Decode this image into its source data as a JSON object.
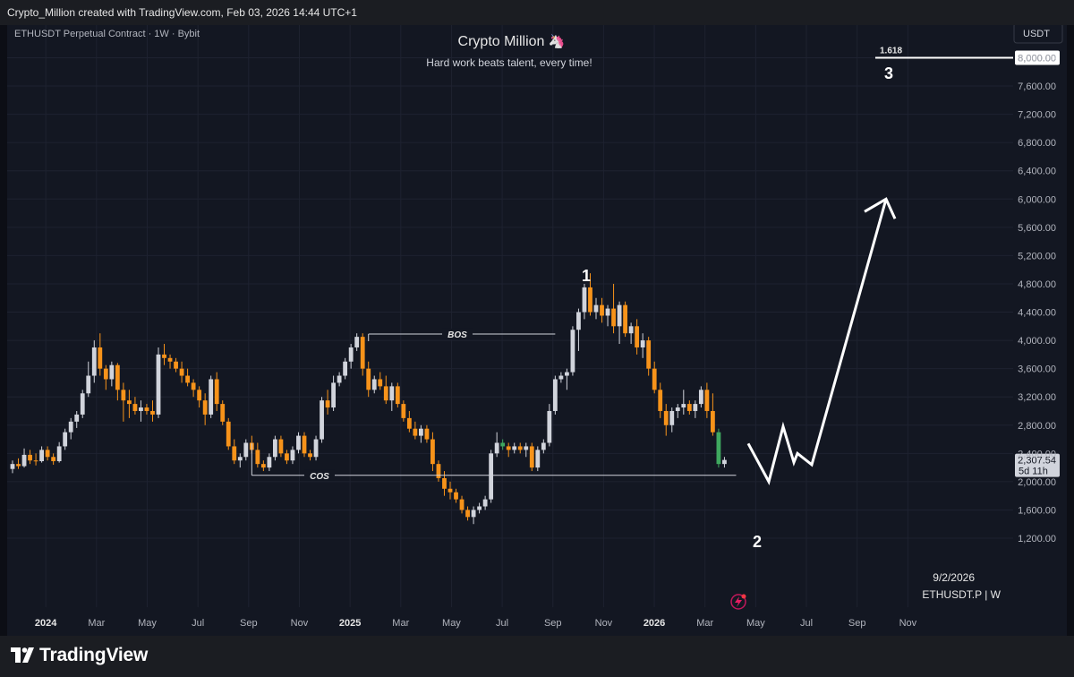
{
  "header": {
    "credit": "Crypto_Million created with TradingView.com, Feb 03, 2026 14:44 UTC+1"
  },
  "chart_data": {
    "type": "candlestick",
    "symbol_info": "ETHUSDT Perpetual Contract · 1W · Bybit",
    "title": "Crypto Million",
    "title_emoji": "🦄",
    "subtitle": "Hard work beats talent, every time!",
    "currency_button": "USDT",
    "ylim": [
      1000,
      8400
    ],
    "y_ticks": [
      "1,200.00",
      "1,600.00",
      "2,000.00",
      "2,400.00",
      "2,800.00",
      "3,200.00",
      "3,600.00",
      "4,000.00",
      "4,400.00",
      "4,800.00",
      "5,200.00",
      "5,600.00",
      "6,000.00",
      "6,400.00",
      "6,800.00",
      "7,200.00",
      "7,600.00",
      "8,000.00"
    ],
    "x_ticks": [
      {
        "label": "2024",
        "year": true
      },
      {
        "label": "Mar"
      },
      {
        "label": "May"
      },
      {
        "label": "Jul"
      },
      {
        "label": "Sep"
      },
      {
        "label": "Nov"
      },
      {
        "label": "2025",
        "year": true
      },
      {
        "label": "Mar"
      },
      {
        "label": "May"
      },
      {
        "label": "Jul"
      },
      {
        "label": "Sep"
      },
      {
        "label": "Nov"
      },
      {
        "label": "2026",
        "year": true
      },
      {
        "label": "Mar"
      },
      {
        "label": "May"
      },
      {
        "label": "Jul"
      },
      {
        "label": "Sep"
      },
      {
        "label": "Nov"
      }
    ],
    "candles": [
      [
        2180,
        2300,
        2120,
        2250
      ],
      [
        2250,
        2330,
        2180,
        2220
      ],
      [
        2220,
        2470,
        2200,
        2380
      ],
      [
        2380,
        2450,
        2250,
        2300
      ],
      [
        2300,
        2400,
        2230,
        2290
      ],
      [
        2290,
        2500,
        2270,
        2450
      ],
      [
        2450,
        2500,
        2300,
        2350
      ],
      [
        2350,
        2400,
        2240,
        2290
      ],
      [
        2290,
        2560,
        2270,
        2500
      ],
      [
        2500,
        2750,
        2450,
        2700
      ],
      [
        2700,
        2900,
        2600,
        2850
      ],
      [
        2850,
        3000,
        2760,
        2950
      ],
      [
        2950,
        3300,
        2900,
        3250
      ],
      [
        3250,
        3700,
        3200,
        3500
      ],
      [
        3500,
        4000,
        3400,
        3900
      ],
      [
        3900,
        4100,
        3500,
        3600
      ],
      [
        3600,
        3650,
        3300,
        3450
      ],
      [
        3450,
        3700,
        3350,
        3650
      ],
      [
        3650,
        3680,
        3150,
        3300
      ],
      [
        3300,
        3400,
        2850,
        3150
      ],
      [
        3150,
        3300,
        2900,
        3100
      ],
      [
        3100,
        3200,
        2950,
        3000
      ],
      [
        3000,
        3150,
        2850,
        3050
      ],
      [
        3050,
        3100,
        2950,
        3000
      ],
      [
        3000,
        3150,
        2850,
        2950
      ],
      [
        2950,
        3900,
        2900,
        3800
      ],
      [
        3800,
        3950,
        3650,
        3750
      ],
      [
        3750,
        3800,
        3600,
        3700
      ],
      [
        3700,
        3750,
        3550,
        3600
      ],
      [
        3600,
        3700,
        3400,
        3500
      ],
      [
        3500,
        3600,
        3350,
        3400
      ],
      [
        3400,
        3450,
        3200,
        3300
      ],
      [
        3300,
        3350,
        3050,
        3150
      ],
      [
        3150,
        3250,
        2800,
        2950
      ],
      [
        2950,
        3500,
        2900,
        3450
      ],
      [
        3450,
        3550,
        3000,
        3100
      ],
      [
        3100,
        3150,
        2800,
        2850
      ],
      [
        2850,
        2900,
        2450,
        2500
      ],
      [
        2500,
        2600,
        2250,
        2300
      ],
      [
        2300,
        2400,
        2200,
        2350
      ],
      [
        2350,
        2600,
        2300,
        2550
      ],
      [
        2550,
        2650,
        2400,
        2450
      ],
      [
        2450,
        2550,
        2200,
        2250
      ],
      [
        2250,
        2300,
        2150,
        2200
      ],
      [
        2200,
        2400,
        2150,
        2350
      ],
      [
        2350,
        2650,
        2300,
        2600
      ],
      [
        2600,
        2650,
        2350,
        2400
      ],
      [
        2400,
        2450,
        2250,
        2300
      ],
      [
        2300,
        2500,
        2250,
        2450
      ],
      [
        2450,
        2700,
        2400,
        2650
      ],
      [
        2650,
        2700,
        2350,
        2400
      ],
      [
        2400,
        2450,
        2300,
        2350
      ],
      [
        2350,
        2650,
        2300,
        2600
      ],
      [
        2600,
        3200,
        2550,
        3150
      ],
      [
        3150,
        3300,
        2950,
        3050
      ],
      [
        3050,
        3500,
        3000,
        3400
      ],
      [
        3400,
        3550,
        3350,
        3500
      ],
      [
        3500,
        3750,
        3450,
        3700
      ],
      [
        3700,
        3950,
        3600,
        3900
      ],
      [
        3900,
        4100,
        3850,
        4050
      ],
      [
        4050,
        4100,
        3500,
        3600
      ],
      [
        3600,
        3700,
        3200,
        3300
      ],
      [
        3300,
        3500,
        3250,
        3450
      ],
      [
        3450,
        3550,
        3300,
        3350
      ],
      [
        3350,
        3500,
        3100,
        3150
      ],
      [
        3150,
        3400,
        3000,
        3350
      ],
      [
        3350,
        3400,
        3050,
        3100
      ],
      [
        3100,
        3150,
        2850,
        2900
      ],
      [
        2900,
        3000,
        2700,
        2750
      ],
      [
        2750,
        2850,
        2600,
        2650
      ],
      [
        2650,
        2800,
        2550,
        2750
      ],
      [
        2750,
        2800,
        2550,
        2600
      ],
      [
        2600,
        2700,
        2150,
        2250
      ],
      [
        2250,
        2300,
        2000,
        2050
      ],
      [
        2050,
        2150,
        1800,
        1900
      ],
      [
        1900,
        2000,
        1750,
        1850
      ],
      [
        1850,
        1900,
        1700,
        1750
      ],
      [
        1750,
        1800,
        1550,
        1600
      ],
      [
        1600,
        1650,
        1450,
        1500
      ],
      [
        1500,
        1650,
        1400,
        1600
      ],
      [
        1600,
        1700,
        1550,
        1650
      ],
      [
        1650,
        1800,
        1600,
        1750
      ],
      [
        1750,
        2450,
        1700,
        2400
      ],
      [
        2400,
        2700,
        2350,
        2550
      ],
      [
        2550,
        2600,
        2450,
        2500
      ],
      [
        2500,
        2550,
        2350,
        2450
      ],
      [
        2450,
        2550,
        2400,
        2500
      ],
      [
        2500,
        2550,
        2400,
        2450
      ],
      [
        2450,
        2550,
        2350,
        2500
      ],
      [
        2500,
        2550,
        2150,
        2200
      ],
      [
        2200,
        2500,
        2150,
        2450
      ],
      [
        2450,
        2600,
        2400,
        2550
      ],
      [
        2550,
        3100,
        2500,
        3000
      ],
      [
        3000,
        3500,
        2950,
        3450
      ],
      [
        3450,
        3550,
        3400,
        3500
      ],
      [
        3500,
        3600,
        3300,
        3550
      ],
      [
        3550,
        4200,
        3500,
        4150
      ],
      [
        4150,
        4450,
        3850,
        4400
      ],
      [
        4400,
        4800,
        4300,
        4750
      ],
      [
        4750,
        4950,
        4350,
        4400
      ],
      [
        4400,
        4600,
        4300,
        4500
      ],
      [
        4500,
        4600,
        4250,
        4350
      ],
      [
        4350,
        4500,
        4200,
        4450
      ],
      [
        4450,
        4800,
        4100,
        4200
      ],
      [
        4200,
        4550,
        3950,
        4500
      ],
      [
        4500,
        4550,
        4050,
        4100
      ],
      [
        4100,
        4250,
        3950,
        4200
      ],
      [
        4200,
        4300,
        3800,
        3900
      ],
      [
        3900,
        4100,
        3750,
        4000
      ],
      [
        4000,
        4050,
        3500,
        3600
      ],
      [
        3600,
        3700,
        3250,
        3300
      ],
      [
        3300,
        3400,
        2900,
        3000
      ],
      [
        3000,
        3100,
        2650,
        2800
      ],
      [
        2800,
        3050,
        2700,
        3000
      ],
      [
        3000,
        3100,
        2900,
        3050
      ],
      [
        3050,
        3300,
        2950,
        3100
      ],
      [
        3100,
        3150,
        2950,
        3000
      ],
      [
        3000,
        3150,
        2900,
        3100
      ],
      [
        3100,
        3350,
        3050,
        3300
      ],
      [
        3300,
        3400,
        2900,
        3000
      ],
      [
        3000,
        3250,
        2650,
        2700
      ],
      [
        2700,
        2750,
        2200,
        2250
      ],
      [
        2250,
        2350,
        2200,
        2307.54
      ]
    ],
    "highlight_candles": [
      84,
      121
    ],
    "price_label": {
      "value": "2,307.54",
      "countdown": "5d 11h"
    },
    "fib_label": "1.618",
    "fib_level": 8000,
    "annotations": {
      "bos": "BOS",
      "cos": "COS",
      "wave1": "1",
      "wave2": "2",
      "wave3": "3"
    },
    "bos_level": 4090,
    "cos_level": 2090,
    "projection_path": [
      [
        2200,
        2400
      ],
      [
        2000,
        2000
      ],
      [
        2760,
        2750
      ],
      [
        2400,
        2200
      ],
      [
        2250,
        2200
      ],
      [
        6000,
        6000
      ]
    ],
    "date_label": "9/2/2026",
    "symbol_label": "ETHUSDT.P | W"
  },
  "footer": {
    "logo_text": "TradingView",
    "logo_icon": "tradingview-logo-icon"
  },
  "colors": {
    "up": "#d1d4dc",
    "down": "#f7931a",
    "highlight": "#3fa85f",
    "background": "#131722",
    "grid": "#1e2230",
    "text": "#b2b5be"
  }
}
